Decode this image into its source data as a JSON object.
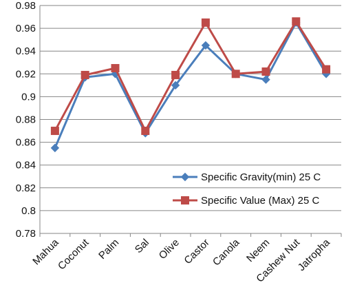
{
  "chart_data": {
    "type": "line",
    "title": "",
    "xlabel": "",
    "ylabel": "",
    "categories": [
      "Mahua",
      "Coconut",
      "Palm",
      "Sal",
      "Olive",
      "Castor",
      "Canola",
      "Neem",
      "Cashew Nut",
      "Jatropha"
    ],
    "ylim": [
      0.78,
      0.98
    ],
    "yticks": [
      0.78,
      0.8,
      0.82,
      0.84,
      0.86,
      0.88,
      0.9,
      0.92,
      0.94,
      0.96,
      0.98
    ],
    "ytick_labels": [
      "0.78",
      "0.8",
      "0.82",
      "0.84",
      "0.86",
      "0.88",
      "0.9",
      "0.92",
      "0.94",
      "0.96",
      "0.98"
    ],
    "grid": true,
    "legend_position": "bottom-right",
    "series": [
      {
        "name": "Specific Gravity(min) 25 C",
        "marker": "diamond",
        "color": "#4a7ebb",
        "values": [
          0.855,
          0.917,
          0.92,
          0.868,
          0.91,
          0.945,
          0.92,
          0.915,
          0.965,
          0.92
        ]
      },
      {
        "name": "Specific Value (Max) 25 C",
        "marker": "square",
        "color": "#be4b48",
        "values": [
          0.87,
          0.919,
          0.925,
          0.87,
          0.919,
          0.965,
          0.92,
          0.922,
          0.966,
          0.924
        ]
      }
    ]
  }
}
